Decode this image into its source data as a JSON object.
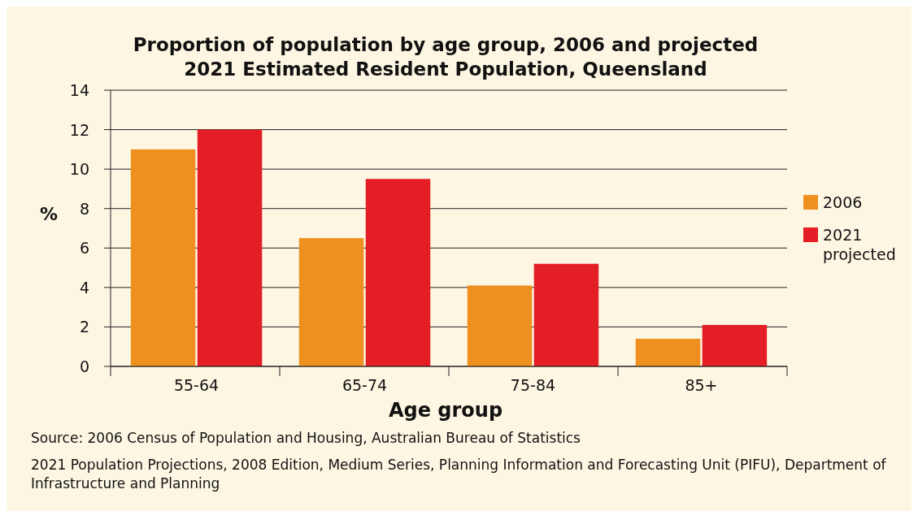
{
  "chart_data": {
    "type": "bar",
    "title": "Proportion of population by age group, 2006 and projected\n2021 Estimated Resident Population, Queensland",
    "xlabel": "Age group",
    "ylabel": "%",
    "categories": [
      "55-64",
      "65-74",
      "75-84",
      "85+"
    ],
    "series": [
      {
        "name": "2006",
        "color": "#ee8f1f",
        "values": [
          11.0,
          6.5,
          4.1,
          1.4
        ]
      },
      {
        "name": "2021 projected",
        "color": "#e31e24",
        "values": [
          12.0,
          9.5,
          5.2,
          2.1
        ]
      }
    ],
    "ylim": [
      0,
      14
    ],
    "yticks": [
      0,
      2,
      4,
      6,
      8,
      10,
      12,
      14
    ],
    "grid": "y",
    "legend": "right",
    "annotations": [
      "Source: 2006 Census of Population and Housing, Australian Bureau of Statistics",
      "2021 Population Projections, 2008 Edition, Medium Series, Planning Information and Forecasting Unit (PIFU), Department of Infrastructure and Planning"
    ]
  }
}
